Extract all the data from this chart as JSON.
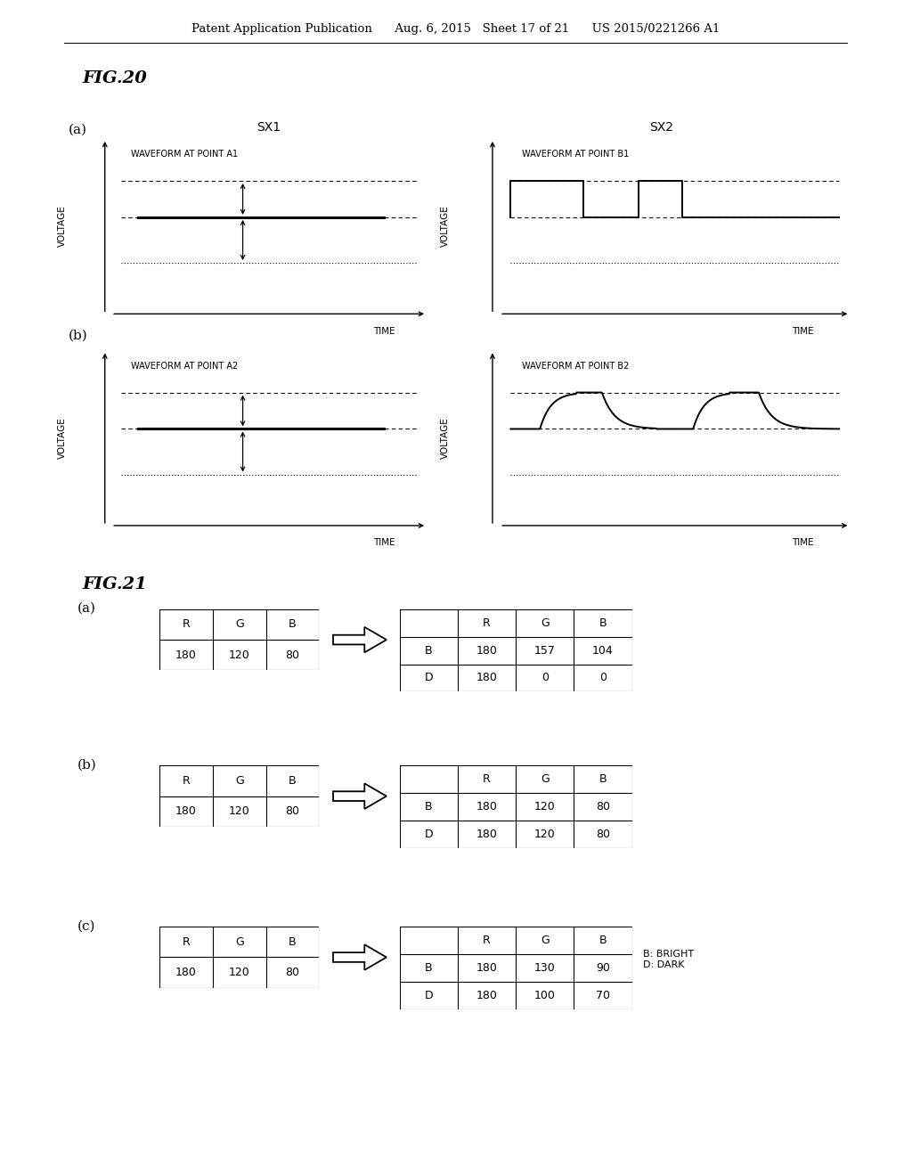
{
  "header_text": "Patent Application Publication      Aug. 6, 2015   Sheet 17 of 21      US 2015/0221266 A1",
  "fig20_title": "FIG.20",
  "fig21_title": "FIG.21",
  "background_color": "#ffffff",
  "text_color": "#000000",
  "panels": {
    "a_left_label": "SX1",
    "a_right_label": "SX2",
    "a_left_waveform_label": "WAVEFORM AT POINT A1",
    "a_right_waveform_label": "WAVEFORM AT POINT B1",
    "b_left_waveform_label": "WAVEFORM AT POINT A2",
    "b_right_waveform_label": "WAVEFORM AT POINT B2",
    "panel_a_label": "(a)",
    "panel_b_label": "(b)"
  },
  "fig21_panels": [
    {
      "label": "(a)",
      "input": {
        "headers": [
          "R",
          "G",
          "B"
        ],
        "values": [
          "180",
          "120",
          "80"
        ]
      },
      "output": {
        "headers": [
          "",
          "R",
          "G",
          "B"
        ],
        "rows": [
          [
            "B",
            "180",
            "157",
            "104"
          ],
          [
            "D",
            "180",
            "0",
            "0"
          ]
        ]
      }
    },
    {
      "label": "(b)",
      "input": {
        "headers": [
          "R",
          "G",
          "B"
        ],
        "values": [
          "180",
          "120",
          "80"
        ]
      },
      "output": {
        "headers": [
          "",
          "R",
          "G",
          "B"
        ],
        "rows": [
          [
            "B",
            "180",
            "120",
            "80"
          ],
          [
            "D",
            "180",
            "120",
            "80"
          ]
        ]
      }
    },
    {
      "label": "(c)",
      "input": {
        "headers": [
          "R",
          "G",
          "B"
        ],
        "values": [
          "180",
          "120",
          "80"
        ]
      },
      "output": {
        "headers": [
          "",
          "R",
          "G",
          "B"
        ],
        "rows": [
          [
            "B",
            "180",
            "130",
            "90"
          ],
          [
            "D",
            "180",
            "100",
            "70"
          ]
        ]
      },
      "note": "B: BRIGHT\nD: DARK"
    }
  ]
}
